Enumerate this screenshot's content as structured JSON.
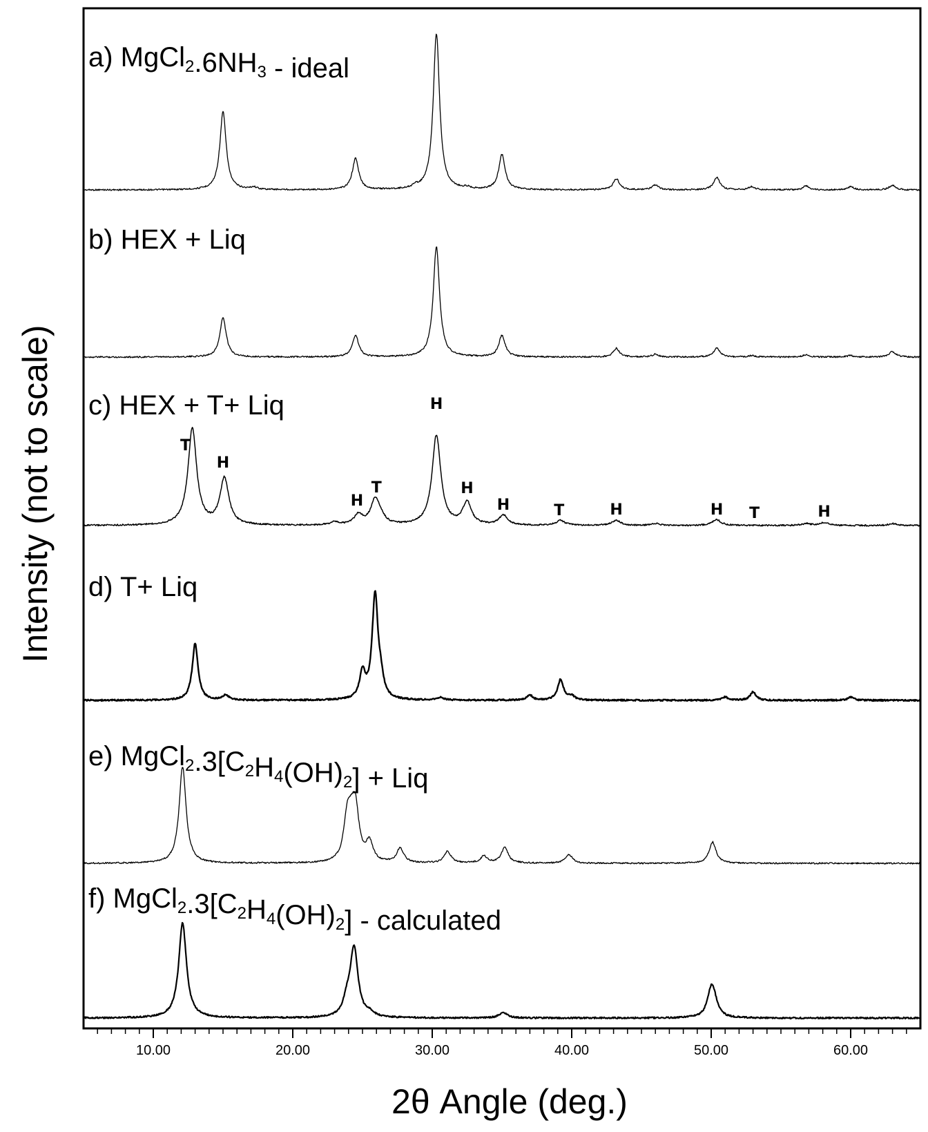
{
  "chart_data": {
    "type": "line",
    "title": "",
    "xlabel": "2θ Angle (deg.)",
    "ylabel": "Intensity (not to scale)",
    "xlim": [
      5,
      65
    ],
    "xticks": [
      10,
      20,
      30,
      40,
      50,
      60
    ],
    "xtick_labels": [
      "10.00",
      "20.00",
      "30.00",
      "40.00",
      "50.00",
      "60.00"
    ],
    "grid": false,
    "legend": "none",
    "series": [
      {
        "label_parts": [
          [
            "a) MgCl",
            false
          ],
          [
            "2",
            true
          ],
          [
            ".6NH",
            false
          ],
          [
            "3",
            true
          ],
          [
            " - ideal",
            false
          ]
        ],
        "peaks": [
          [
            15.0,
            1.0
          ],
          [
            17.2,
            0.03
          ],
          [
            24.5,
            0.4
          ],
          [
            28.8,
            0.03
          ],
          [
            30.3,
            2.0
          ],
          [
            32.5,
            0.02
          ],
          [
            35.0,
            0.45
          ],
          [
            43.2,
            0.14
          ],
          [
            46.0,
            0.06
          ],
          [
            50.4,
            0.16
          ],
          [
            52.9,
            0.04
          ],
          [
            56.8,
            0.05
          ],
          [
            60.0,
            0.04
          ],
          [
            63.0,
            0.06
          ]
        ]
      },
      {
        "label_parts": [
          [
            "b) HEX +  Liq",
            false
          ]
        ],
        "peaks": [
          [
            15.0,
            1.0
          ],
          [
            24.5,
            0.55
          ],
          [
            30.3,
            2.8
          ],
          [
            35.0,
            0.55
          ],
          [
            43.2,
            0.22
          ],
          [
            46.0,
            0.07
          ],
          [
            50.4,
            0.22
          ],
          [
            52.9,
            0.04
          ],
          [
            56.8,
            0.06
          ],
          [
            60.0,
            0.04
          ],
          [
            63.0,
            0.14
          ]
        ]
      },
      {
        "label_parts": [
          [
            "c) HEX +  T+  Liq",
            false
          ]
        ],
        "peaks": [
          [
            12.8,
            1.0
          ],
          [
            15.1,
            0.48
          ],
          [
            23.0,
            0.03
          ],
          [
            24.7,
            0.1
          ],
          [
            25.9,
            0.25
          ],
          [
            26.3,
            0.06
          ],
          [
            30.3,
            0.93
          ],
          [
            32.5,
            0.23
          ],
          [
            35.1,
            0.1
          ],
          [
            39.2,
            0.05
          ],
          [
            43.2,
            0.05
          ],
          [
            46.0,
            0.02
          ],
          [
            50.4,
            0.06
          ],
          [
            56.8,
            0.02
          ],
          [
            58.1,
            0.03
          ],
          [
            63.0,
            0.02
          ]
        ],
        "annotations": [
          [
            "T",
            12.3
          ],
          [
            "H",
            15.0
          ],
          [
            "H",
            24.6
          ],
          [
            "T",
            26.0
          ],
          [
            "H",
            30.3
          ],
          [
            "H",
            32.5
          ],
          [
            "H",
            35.1
          ],
          [
            "T",
            39.1
          ],
          [
            "H",
            43.2
          ],
          [
            "H",
            50.4
          ],
          [
            "T",
            53.1
          ],
          [
            "H",
            58.1
          ]
        ]
      },
      {
        "label_parts": [
          [
            "d) T+  Liq",
            false
          ]
        ],
        "peaks": [
          [
            13.0,
            0.55
          ],
          [
            15.2,
            0.05
          ],
          [
            25.0,
            0.25
          ],
          [
            25.9,
            1.0
          ],
          [
            26.3,
            0.15
          ],
          [
            30.6,
            0.03
          ],
          [
            37.0,
            0.05
          ],
          [
            39.2,
            0.2
          ],
          [
            40.0,
            0.04
          ],
          [
            51.0,
            0.03
          ],
          [
            53.0,
            0.08
          ],
          [
            60.0,
            0.03
          ]
        ]
      },
      {
        "label_parts": [
          [
            "e) MgCl",
            false
          ],
          [
            "2",
            true
          ],
          [
            ".3[C",
            false
          ],
          [
            "2",
            true
          ],
          [
            "H",
            false
          ],
          [
            "4",
            true
          ],
          [
            "(OH)",
            false
          ],
          [
            "2",
            true
          ],
          [
            "] +  Liq",
            false
          ]
        ],
        "peaks": [
          [
            12.1,
            1.0
          ],
          [
            23.9,
            0.4
          ],
          [
            24.2,
            0.25
          ],
          [
            24.5,
            0.5
          ],
          [
            25.5,
            0.2
          ],
          [
            27.7,
            0.15
          ],
          [
            31.1,
            0.12
          ],
          [
            33.7,
            0.07
          ],
          [
            35.2,
            0.16
          ],
          [
            39.8,
            0.09
          ],
          [
            50.1,
            0.22
          ]
        ]
      },
      {
        "label_parts": [
          [
            "f) MgCl",
            false
          ],
          [
            "2",
            true
          ],
          [
            ".3[C",
            false
          ],
          [
            "2",
            true
          ],
          [
            "H",
            false
          ],
          [
            "4",
            true
          ],
          [
            "(OH)",
            false
          ],
          [
            "2",
            true
          ],
          [
            "] - calculated",
            false
          ]
        ],
        "peaks": [
          [
            12.1,
            1.0
          ],
          [
            23.9,
            0.15
          ],
          [
            24.4,
            0.72
          ],
          [
            25.5,
            0.04
          ],
          [
            35.1,
            0.06
          ],
          [
            50.0,
            0.26
          ],
          [
            50.2,
            0.12
          ]
        ]
      }
    ]
  }
}
